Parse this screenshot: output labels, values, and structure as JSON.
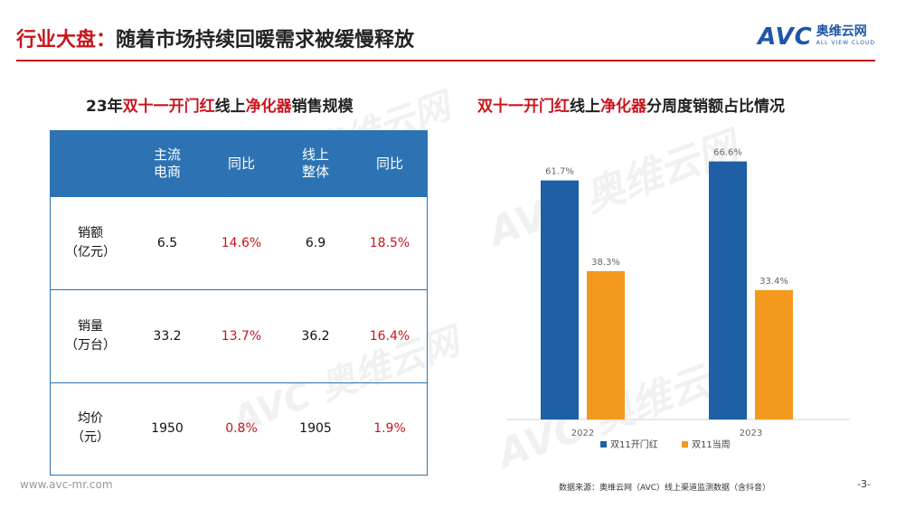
{
  "header": {
    "title_prefix": "行业大盘：",
    "title_rest": "随着市场持续回暖需求被缓慢释放"
  },
  "logo": {
    "mark": "AVC",
    "cn": "奥维云网",
    "en": "ALL VIEW CLOUD"
  },
  "left": {
    "title_parts": [
      "23年",
      "双十一开门红",
      "线上",
      "净化器",
      "销售规模"
    ],
    "headers": [
      "",
      "主流\n电商",
      "同比",
      "线上\n整体",
      "同比"
    ],
    "rows": [
      {
        "label": "销额\n（亿元）",
        "values": [
          "6.5",
          "14.6%",
          "6.9",
          "18.5%"
        ]
      },
      {
        "label": "销量\n（万台）",
        "values": [
          "33.2",
          "13.7%",
          "36.2",
          "16.4%"
        ]
      },
      {
        "label": "均价\n（元）",
        "values": [
          "1950",
          "0.8%",
          "1905",
          "1.9%"
        ]
      }
    ]
  },
  "right": {
    "title_parts": [
      "双十一开门红",
      "线上",
      "净化器",
      "分周度销额占比情况"
    ]
  },
  "watermark": {
    "mark": "AVC",
    "cn": "奥维云网",
    "en": "ALL VIEW CLOUD"
  },
  "chart_data": {
    "type": "bar",
    "categories": [
      "2022",
      "2023"
    ],
    "series": [
      {
        "name": "双11开门红",
        "values": [
          61.7,
          66.6
        ],
        "labels": [
          "61.7%",
          "66.6%"
        ],
        "color": "#1f5fa5"
      },
      {
        "name": "双11当周",
        "values": [
          38.3,
          33.4
        ],
        "labels": [
          "38.3%",
          "33.4%"
        ],
        "color": "#f39a1e"
      }
    ],
    "ylim": [
      0,
      70
    ],
    "grid": false,
    "legend": "bottom"
  },
  "footer": {
    "url": "www.avc-mr.com",
    "source": "数据来源：奥维云网（AVC）线上渠道监测数据（含抖音）",
    "page": "-3-"
  },
  "colors": {
    "accent": "#c9151e",
    "brand": "#1f56a8",
    "table_header": "#2d73b3"
  }
}
